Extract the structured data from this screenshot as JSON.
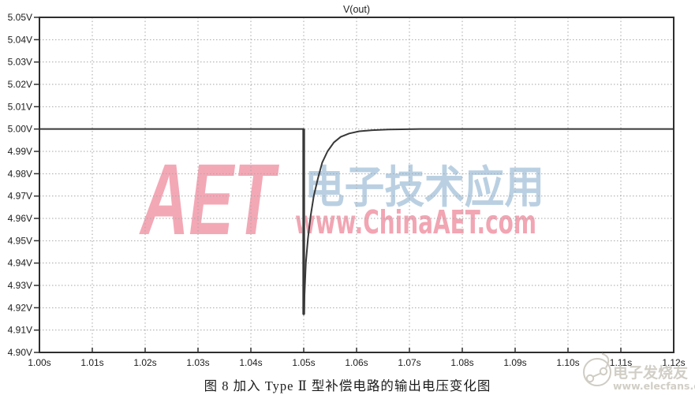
{
  "chart_data": {
    "type": "line",
    "title": "V(out)",
    "xlabel": "",
    "ylabel": "",
    "xlim": [
      1.0,
      1.12
    ],
    "ylim": [
      4.9,
      5.05
    ],
    "grid": "dotted",
    "legend_position": "none",
    "x_ticks": [
      {
        "v": 1.0,
        "label": "1.00s"
      },
      {
        "v": 1.01,
        "label": "1.01s"
      },
      {
        "v": 1.02,
        "label": "1.02s"
      },
      {
        "v": 1.03,
        "label": "1.03s"
      },
      {
        "v": 1.04,
        "label": "1.04s"
      },
      {
        "v": 1.05,
        "label": "1.05s"
      },
      {
        "v": 1.06,
        "label": "1.06s"
      },
      {
        "v": 1.07,
        "label": "1.07s"
      },
      {
        "v": 1.08,
        "label": "1.08s"
      },
      {
        "v": 1.09,
        "label": "1.09s"
      },
      {
        "v": 1.1,
        "label": "1.10s"
      },
      {
        "v": 1.11,
        "label": "1.11s"
      },
      {
        "v": 1.12,
        "label": "1.12s"
      }
    ],
    "y_ticks": [
      {
        "v": 5.05,
        "label": "5.05V"
      },
      {
        "v": 5.04,
        "label": "5.04V"
      },
      {
        "v": 5.03,
        "label": "5.03V"
      },
      {
        "v": 5.02,
        "label": "5.02V"
      },
      {
        "v": 5.01,
        "label": "5.01V"
      },
      {
        "v": 5.0,
        "label": "5.00V"
      },
      {
        "v": 4.99,
        "label": "4.99V"
      },
      {
        "v": 4.98,
        "label": "4.98V"
      },
      {
        "v": 4.97,
        "label": "4.97V"
      },
      {
        "v": 4.96,
        "label": "4.96V"
      },
      {
        "v": 4.95,
        "label": "4.95V"
      },
      {
        "v": 4.94,
        "label": "4.94V"
      },
      {
        "v": 4.93,
        "label": "4.93V"
      },
      {
        "v": 4.92,
        "label": "4.92V"
      },
      {
        "v": 4.91,
        "label": "4.91V"
      },
      {
        "v": 4.9,
        "label": "4.90V"
      }
    ],
    "series": [
      {
        "name": "V(out)",
        "points": [
          [
            1.0,
            5.0
          ],
          [
            1.05,
            5.0
          ],
          [
            1.05,
            4.917
          ],
          [
            1.0504,
            4.94
          ],
          [
            1.0508,
            4.951
          ],
          [
            1.0513,
            4.961
          ],
          [
            1.0519,
            4.97
          ],
          [
            1.0527,
            4.978
          ],
          [
            1.0535,
            4.985
          ],
          [
            1.0545,
            4.99
          ],
          [
            1.0557,
            4.994
          ],
          [
            1.057,
            4.9965
          ],
          [
            1.0586,
            4.998
          ],
          [
            1.0605,
            4.999
          ],
          [
            1.063,
            4.9995
          ],
          [
            1.066,
            4.9998
          ],
          [
            1.072,
            5.0
          ],
          [
            1.12,
            5.0
          ]
        ]
      }
    ],
    "annotations": {
      "event_time_s": 1.05,
      "min_voltage_v": 4.917,
      "steady_state_v": 5.0,
      "recovery_complete_s": 1.072
    }
  },
  "watermarks": {
    "aet": {
      "text": "AET",
      "color": "#f3a4b3"
    },
    "cn": {
      "text": "电子技术应用",
      "color": "#b7cee1"
    },
    "url": {
      "text": "www.ChinaAET.com",
      "color": "#f19cab"
    },
    "elecfans": {
      "name": "电子发烧友",
      "site": "www.elecfans.com",
      "color": "#cfccc4"
    }
  },
  "caption": "图 8  加入 Type Ⅱ 型补偿电路的输出电压变化图",
  "colors": {
    "background": "#ffffff",
    "grid": "#a6a6a6",
    "border": "#2e2e2e",
    "text": "#1c1c1c",
    "trace": "#383838",
    "trace_drop": "#787878"
  }
}
